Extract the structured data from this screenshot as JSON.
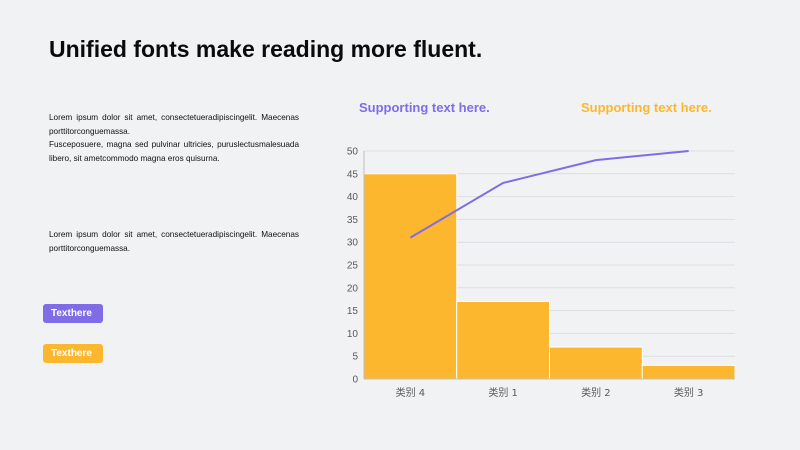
{
  "page": {
    "title": "Unified fonts make reading more fluent.",
    "para1": [
      "Lorem ipsum dolor sit amet, consectetueradipiscingelit.  Maecenas porttitorconguemassa.",
      "Fusceposuere, magna sed pulvinar ultricies, puruslectusmalesuada libero, sit ametcommodo magna eros quisurna."
    ],
    "para2": "Lorem ipsum dolor sit amet, consectetueradipiscingelit.  Maecenas porttitorconguemassa.",
    "tag1": "Texthere",
    "tag2": "Texthere",
    "support1": "Supporting text here.",
    "support2": "Supporting text here."
  },
  "colors": {
    "purple": "#7f6ce6",
    "gold": "#fdb72e",
    "grid": "#dcdde0",
    "axis_text": "#595959"
  },
  "chart_data": {
    "type": "bar",
    "categories": [
      "类别 4",
      "类别 1",
      "类别 2",
      "类别 3"
    ],
    "series": [
      {
        "type": "bar",
        "values": [
          45,
          17,
          7,
          3
        ]
      },
      {
        "type": "line",
        "values": [
          31,
          43,
          48,
          50
        ]
      }
    ],
    "ylim": [
      0,
      50
    ],
    "yticks": [
      0,
      5,
      10,
      15,
      20,
      25,
      30,
      35,
      40,
      45,
      50
    ],
    "grid": true
  }
}
